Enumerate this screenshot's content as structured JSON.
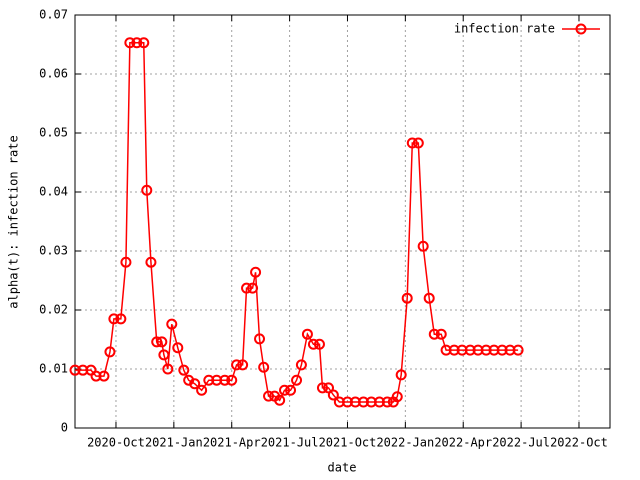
{
  "chart_data": {
    "type": "line",
    "xlabel": "date",
    "ylabel": "alpha(t): infection rate",
    "grid": true,
    "legend": "top-right",
    "xlim": [
      2020.573,
      2022.884
    ],
    "ylim": [
      0,
      0.07
    ],
    "yticks": [
      0,
      0.01,
      0.02,
      0.03,
      0.04,
      0.05,
      0.06,
      0.07
    ],
    "xticks": [
      {
        "value": 2020.75,
        "label": "2020-Oct"
      },
      {
        "value": 2021.0,
        "label": "2021-Jan"
      },
      {
        "value": 2021.25,
        "label": "2021-Apr"
      },
      {
        "value": 2021.5,
        "label": "2021-Jul"
      },
      {
        "value": 2021.75,
        "label": "2021-Oct"
      },
      {
        "value": 2022.0,
        "label": "2022-Jan"
      },
      {
        "value": 2022.25,
        "label": "2022-Apr"
      },
      {
        "value": 2022.5,
        "label": "2022-Jul"
      },
      {
        "value": 2022.75,
        "label": "2022-Oct"
      }
    ],
    "x": [
      2020.573,
      2020.607,
      2020.642,
      2020.664,
      2020.698,
      2020.724,
      2020.741,
      2020.771,
      2020.793,
      2020.81,
      2020.84,
      2020.87,
      2020.883,
      2020.901,
      2020.926,
      2020.948,
      2020.957,
      2020.974,
      2020.991,
      2021.017,
      2021.043,
      2021.064,
      2021.09,
      2021.12,
      2021.151,
      2021.185,
      2021.22,
      2021.25,
      2021.271,
      2021.297,
      2021.314,
      2021.34,
      2021.353,
      2021.37,
      2021.388,
      2021.409,
      2021.435,
      2021.457,
      2021.478,
      2021.504,
      2021.53,
      2021.551,
      2021.577,
      2021.603,
      2021.629,
      2021.642,
      2021.668,
      2021.689,
      2021.715,
      2021.75,
      2021.784,
      2021.819,
      2021.853,
      2021.888,
      2021.922,
      2021.948,
      2021.965,
      2021.982,
      2022.008,
      2022.03,
      2022.056,
      2022.077,
      2022.103,
      2022.125,
      2022.155,
      2022.176,
      2022.211,
      2022.245,
      2022.28,
      2022.314,
      2022.349,
      2022.383,
      2022.418,
      2022.452,
      2022.487
    ],
    "series": [
      {
        "name": "infection rate",
        "color": "#ff0000",
        "values": [
          0.0098,
          0.0098,
          0.0098,
          0.0088,
          0.0088,
          0.0129,
          0.0185,
          0.0185,
          0.0281,
          0.0653,
          0.0653,
          0.0653,
          0.0403,
          0.0281,
          0.0146,
          0.0146,
          0.0124,
          0.01,
          0.0176,
          0.0136,
          0.0098,
          0.0081,
          0.0075,
          0.0064,
          0.0081,
          0.0081,
          0.0081,
          0.0081,
          0.0107,
          0.0107,
          0.0237,
          0.0237,
          0.0264,
          0.0151,
          0.0103,
          0.0054,
          0.0054,
          0.0047,
          0.0064,
          0.0064,
          0.0081,
          0.0107,
          0.0159,
          0.0142,
          0.0142,
          0.0068,
          0.0068,
          0.0056,
          0.0044,
          0.0044,
          0.0044,
          0.0044,
          0.0044,
          0.0044,
          0.0044,
          0.0044,
          0.0053,
          0.009,
          0.022,
          0.0483,
          0.0483,
          0.0308,
          0.022,
          0.0159,
          0.0159,
          0.0132,
          0.0132,
          0.0132,
          0.0132,
          0.0132,
          0.0132,
          0.0132,
          0.0132,
          0.0132,
          0.0132
        ]
      }
    ]
  }
}
